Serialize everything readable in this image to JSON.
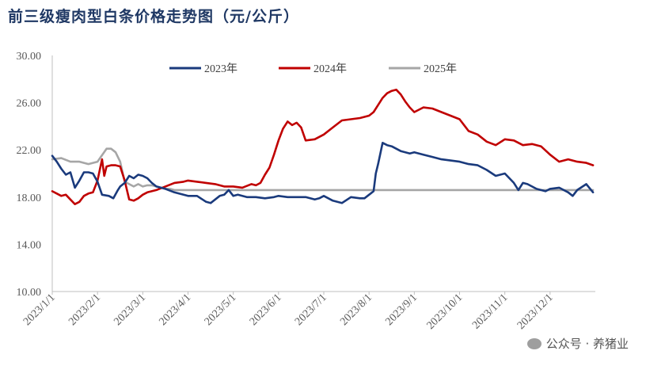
{
  "title": "前三级瘦肉型白条价格走势图（元/公斤）",
  "watermark": "公众号 · 养猪业",
  "chart_data": {
    "type": "line",
    "title": "前三级瘦肉型白条价格走势图（元/公斤）",
    "ylim": [
      10,
      30
    ],
    "yticks": [
      "10.00",
      "14.00",
      "18.00",
      "22.00",
      "26.00",
      "30.00"
    ],
    "categories": [
      "2023/1/1",
      "2023/2/1",
      "2023/3/1",
      "2023/4/1",
      "2023/5/1",
      "2023/6/1",
      "2023/7/1",
      "2023/8/1",
      "2023/9/1",
      "2023/10/1",
      "2023/11/1",
      "2023/12/1"
    ],
    "legend_position": "top",
    "series": [
      {
        "name": "2023年",
        "color": "#1a3a7c",
        "x": [
          0,
          0.1,
          0.2,
          0.3,
          0.4,
          0.5,
          0.6,
          0.7,
          0.8,
          0.9,
          1,
          1.1,
          1.25,
          1.35,
          1.45,
          1.5,
          1.6,
          1.7,
          1.8,
          1.9,
          2,
          2.1,
          2.2,
          2.3,
          2.5,
          2.7,
          2.9,
          3,
          3.2,
          3.4,
          3.5,
          3.6,
          3.7,
          3.8,
          3.9,
          4,
          4.1,
          4.2,
          4.3,
          4.5,
          4.7,
          4.9,
          5,
          5.2,
          5.4,
          5.6,
          5.8,
          5.9,
          6,
          6.2,
          6.4,
          6.6,
          6.8,
          6.9,
          7,
          7.1,
          7.15,
          7.2,
          7.3,
          7.4,
          7.5,
          7.7,
          7.9,
          8,
          8.2,
          8.4,
          8.6,
          8.8,
          9,
          9.2,
          9.4,
          9.6,
          9.8,
          10,
          10.2,
          10.3,
          10.4,
          10.5,
          10.7,
          10.9,
          11,
          11.2,
          11.4,
          11.5,
          11.6,
          11.8,
          11.95
        ],
        "y": [
          21.5,
          21,
          20.4,
          19.9,
          20.1,
          18.8,
          19.4,
          20.1,
          20.1,
          20,
          19.3,
          18.2,
          18.1,
          17.9,
          18.6,
          18.9,
          19.2,
          19.8,
          19.6,
          19.9,
          19.8,
          19.6,
          19.2,
          18.9,
          18.7,
          18.4,
          18.2,
          18.1,
          18.1,
          17.6,
          17.5,
          17.8,
          18.1,
          18.2,
          18.6,
          18.1,
          18.2,
          18.1,
          18,
          18,
          17.9,
          18,
          18.1,
          18,
          18,
          18,
          17.8,
          17.9,
          18.1,
          17.7,
          17.5,
          18,
          17.9,
          17.9,
          18.2,
          18.5,
          20,
          20.8,
          22.6,
          22.4,
          22.3,
          21.9,
          21.7,
          21.8,
          21.6,
          21.4,
          21.2,
          21.1,
          21,
          20.8,
          20.7,
          20.3,
          19.8,
          20,
          19.2,
          18.6,
          19.2,
          19.1,
          18.7,
          18.5,
          18.7,
          18.8,
          18.4,
          18.1,
          18.6,
          19.1,
          18.4
        ]
      },
      {
        "name": "2024年",
        "color": "#c00000",
        "x": [
          0,
          0.1,
          0.2,
          0.3,
          0.4,
          0.5,
          0.6,
          0.7,
          0.8,
          0.9,
          1,
          1.05,
          1.1,
          1.15,
          1.2,
          1.3,
          1.4,
          1.5,
          1.6,
          1.7,
          1.8,
          1.9,
          2,
          2.1,
          2.3,
          2.5,
          2.7,
          2.9,
          3,
          3.2,
          3.4,
          3.6,
          3.8,
          4,
          4.2,
          4.4,
          4.5,
          4.6,
          4.7,
          4.8,
          4.9,
          5,
          5.1,
          5.2,
          5.3,
          5.4,
          5.5,
          5.6,
          5.8,
          6,
          6.2,
          6.4,
          6.6,
          6.8,
          7,
          7.1,
          7.2,
          7.3,
          7.4,
          7.5,
          7.6,
          7.7,
          7.8,
          7.9,
          8,
          8.2,
          8.4,
          8.6,
          8.8,
          9,
          9.1,
          9.2,
          9.4,
          9.6,
          9.8,
          10,
          10.2,
          10.4,
          10.6,
          10.8,
          11,
          11.2,
          11.4,
          11.6,
          11.8,
          11.95
        ],
        "y": [
          18.5,
          18.3,
          18.1,
          18.2,
          17.8,
          17.4,
          17.6,
          18.1,
          18.3,
          18.4,
          19.4,
          20.3,
          21.2,
          19.8,
          20.6,
          20.7,
          20.7,
          20.6,
          19.4,
          17.8,
          17.7,
          17.9,
          18.2,
          18.4,
          18.6,
          18.9,
          19.2,
          19.3,
          19.4,
          19.3,
          19.2,
          19.1,
          18.9,
          18.9,
          18.8,
          19.1,
          19,
          19.2,
          19.9,
          20.5,
          21.6,
          22.8,
          23.8,
          24.4,
          24.1,
          24.3,
          23.9,
          22.8,
          22.9,
          23.3,
          23.9,
          24.5,
          24.6,
          24.7,
          24.9,
          25.2,
          25.8,
          26.4,
          26.8,
          27,
          27.1,
          26.7,
          26.1,
          25.6,
          25.2,
          25.6,
          25.5,
          25.2,
          24.9,
          24.6,
          24.1,
          23.6,
          23.3,
          22.7,
          22.4,
          22.9,
          22.8,
          22.4,
          22.5,
          22.3,
          21.6,
          21,
          21.2,
          21,
          20.9,
          20.7
        ]
      },
      {
        "name": "2025年",
        "color": "#a6a6a6",
        "x": [
          0,
          0.2,
          0.4,
          0.6,
          0.8,
          1,
          1.2,
          1.3,
          1.4,
          1.5,
          1.6,
          1.7,
          1.8,
          1.9,
          2,
          2.1,
          2.2,
          2.3,
          2.4,
          2.5,
          2.6,
          2.7,
          2.8,
          2.9,
          3,
          3.1,
          3.2,
          3.4,
          3.6,
          3.8,
          4,
          4.2,
          4.4,
          4.6,
          4.8,
          5,
          5.2,
          5.4,
          5.6,
          5.8,
          6,
          6.2,
          6.4,
          6.6,
          6.8,
          7,
          7.2,
          7.4,
          7.6,
          7.8,
          8,
          8.2,
          8.4,
          8.6,
          8.8,
          9,
          9.2,
          9.4,
          9.6,
          9.8,
          10,
          10.2,
          10.4,
          10.6,
          10.8,
          11,
          11.2,
          11.4,
          11.6,
          11.8,
          11.95
        ],
        "y": [
          21.2,
          21.3,
          21,
          21,
          20.8,
          21,
          22.1,
          22.1,
          21.8,
          21,
          19.3,
          19.1,
          18.9,
          19.1,
          18.9,
          19,
          19,
          18.9,
          18.8,
          18.7,
          18.7,
          18.6,
          18.6,
          18.6,
          18.6,
          18.6,
          18.6,
          18.6,
          18.6,
          18.6,
          18.6,
          18.6,
          18.6,
          18.6,
          18.6,
          18.6,
          18.6,
          18.6,
          18.6,
          18.6,
          18.6,
          18.6,
          18.6,
          18.6,
          18.6,
          18.6,
          18.6,
          18.6,
          18.6,
          18.6,
          18.6,
          18.6,
          18.6,
          18.6,
          18.6,
          18.6,
          18.6,
          18.6,
          18.6,
          18.6,
          18.6,
          18.6,
          18.6,
          18.6,
          18.6,
          18.6,
          18.6,
          18.6,
          18.6,
          18.6,
          18.6
        ]
      }
    ]
  }
}
